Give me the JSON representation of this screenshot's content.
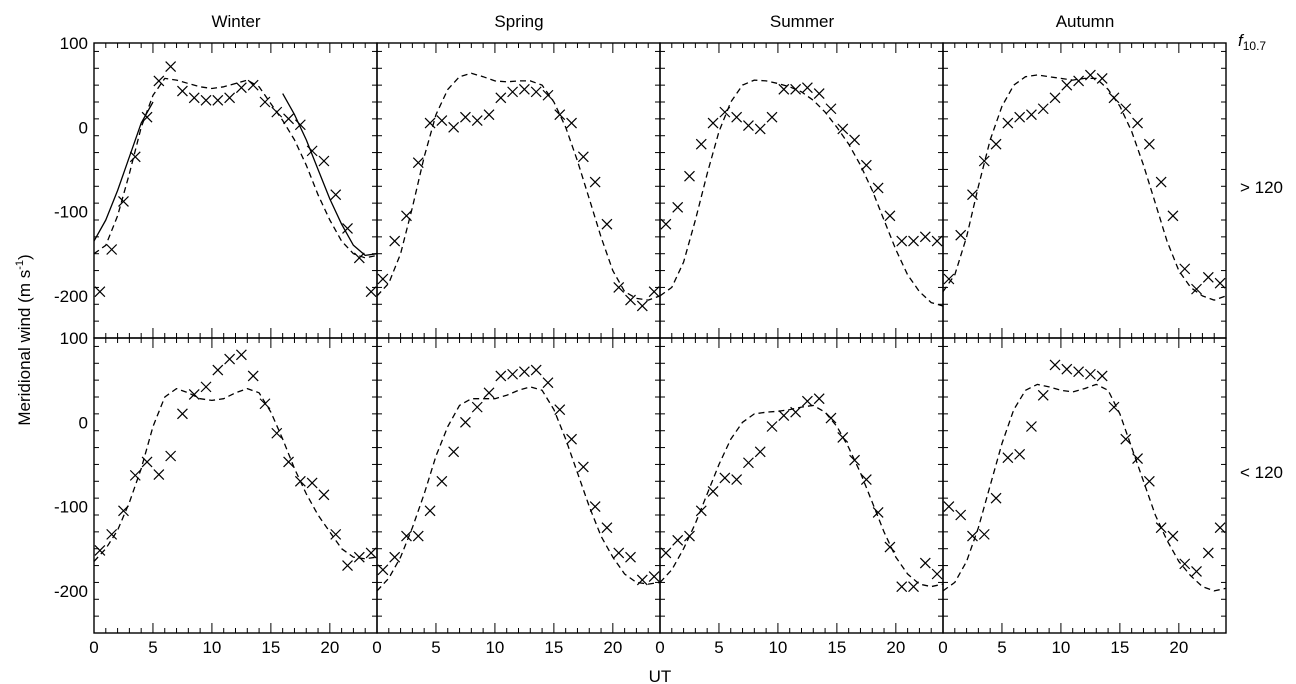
{
  "figure": {
    "ylabel_main": "Meridional wind (m s",
    "ylabel_sup": "-1",
    "ylabel_close": ")",
    "xlabel": "UT",
    "f107_label_main": "f",
    "f107_label_sub": "10.7",
    "row_labels": [
      "> 120",
      "< 120"
    ],
    "season_titles": [
      "Winter",
      "Spring",
      "Summer",
      "Autumn"
    ]
  },
  "chart_data": {
    "type": "scatter",
    "grid": false,
    "xlim": [
      0,
      24
    ],
    "ylim": [
      -250,
      100
    ],
    "x_ticks": [
      "0",
      "5",
      "10",
      "15",
      "20"
    ],
    "y_ticks": [
      "100",
      "0",
      "-100",
      "-200"
    ],
    "panels": [
      {
        "season": "Winter",
        "f107": "> 120",
        "obs_x": [
          0.5,
          1.5,
          2.5,
          3.5,
          4.5,
          5.5,
          6.5,
          7.5,
          8.5,
          9.5,
          10.5,
          11.5,
          12.5,
          13.5,
          14.5,
          15.5,
          16.5,
          17.5,
          18.5,
          19.5,
          20.5,
          21.5,
          22.5,
          23.5
        ],
        "obs_y": [
          -195,
          -145,
          -88,
          -35,
          12,
          55,
          72,
          43,
          35,
          32,
          32,
          35,
          47,
          50,
          30,
          18,
          10,
          3,
          -28,
          -40,
          -80,
          -120,
          -155,
          -195
        ],
        "model_x": [
          0,
          1,
          2,
          3,
          4,
          5,
          6,
          7,
          8,
          9,
          10,
          11,
          12,
          13,
          14,
          15,
          16,
          17,
          18,
          19,
          20,
          21,
          22,
          23,
          24
        ],
        "model_y": [
          -150,
          -140,
          -105,
          -55,
          0,
          38,
          58,
          56,
          52,
          48,
          46,
          48,
          52,
          56,
          48,
          28,
          8,
          -15,
          -45,
          -80,
          -110,
          -135,
          -150,
          -155,
          -152
        ],
        "solid_segments": [
          {
            "x": [
              0,
              1,
              2,
              3,
              4,
              5
            ],
            "y": [
              -135,
              -110,
              -75,
              -35,
              5,
              30
            ]
          },
          {
            "x": [
              16,
              17,
              18,
              19,
              20,
              21,
              22,
              23,
              24
            ],
            "y": [
              40,
              15,
              -15,
              -50,
              -85,
              -115,
              -140,
              -152,
              -150
            ]
          }
        ]
      },
      {
        "season": "Spring",
        "f107": "> 120",
        "obs_x": [
          0.5,
          1.5,
          2.5,
          3.5,
          4.5,
          5.5,
          6.5,
          7.5,
          8.5,
          9.5,
          10.5,
          11.5,
          12.5,
          13.5,
          14.5,
          15.5,
          16.5,
          17.5,
          18.5,
          19.5,
          20.5,
          21.5,
          22.5,
          23.5
        ],
        "obs_y": [
          -180,
          -135,
          -105,
          -42,
          5,
          8,
          0,
          12,
          8,
          15,
          35,
          42,
          45,
          42,
          38,
          15,
          5,
          -35,
          -65,
          -115,
          -190,
          -205,
          -212,
          -195
        ],
        "model_x": [
          0,
          1,
          2,
          3,
          4,
          5,
          6,
          7,
          8,
          9,
          10,
          11,
          12,
          13,
          14,
          15,
          16,
          17,
          18,
          19,
          20,
          21,
          22,
          23,
          24
        ],
        "model_y": [
          -200,
          -185,
          -150,
          -95,
          -35,
          15,
          45,
          60,
          64,
          60,
          55,
          54,
          55,
          55,
          50,
          30,
          0,
          -40,
          -85,
          -130,
          -170,
          -195,
          -203,
          -205,
          -200
        ]
      },
      {
        "season": "Summer",
        "f107": "> 120",
        "obs_x": [
          0.5,
          1.5,
          2.5,
          3.5,
          4.5,
          5.5,
          6.5,
          7.5,
          8.5,
          9.5,
          10.5,
          11.5,
          12.5,
          13.5,
          14.5,
          15.5,
          16.5,
          17.5,
          18.5,
          19.5,
          20.5,
          21.5,
          22.5,
          23.5
        ],
        "obs_y": [
          -115,
          -95,
          -58,
          -20,
          5,
          18,
          12,
          2,
          -2,
          12,
          45,
          45,
          47,
          40,
          22,
          -2,
          -15,
          -45,
          -72,
          -105,
          -135,
          -135,
          -130,
          -135
        ],
        "model_x": [
          0,
          1,
          2,
          3,
          4,
          5,
          6,
          7,
          8,
          9,
          10,
          11,
          12,
          13,
          14,
          15,
          16,
          17,
          18,
          19,
          20,
          21,
          22,
          23,
          24
        ],
        "model_y": [
          -200,
          -190,
          -160,
          -110,
          -55,
          -5,
          30,
          50,
          56,
          55,
          52,
          48,
          42,
          32,
          18,
          0,
          -20,
          -45,
          -75,
          -110,
          -145,
          -175,
          -195,
          -208,
          -212
        ]
      },
      {
        "season": "Autumn",
        "f107": "> 120",
        "obs_x": [
          0.5,
          1.5,
          2.5,
          3.5,
          4.5,
          5.5,
          6.5,
          7.5,
          8.5,
          9.5,
          10.5,
          11.5,
          12.5,
          13.5,
          14.5,
          15.5,
          16.5,
          17.5,
          18.5,
          19.5,
          20.5,
          21.5,
          22.5,
          23.5
        ],
        "obs_y": [
          -180,
          -128,
          -80,
          -40,
          -20,
          5,
          12,
          15,
          22,
          35,
          50,
          55,
          62,
          58,
          35,
          22,
          5,
          -20,
          -65,
          -105,
          -168,
          -192,
          -178,
          -185
        ],
        "model_x": [
          0,
          1,
          2,
          3,
          4,
          5,
          6,
          7,
          8,
          9,
          10,
          11,
          12,
          13,
          14,
          15,
          16,
          17,
          18,
          19,
          20,
          21,
          22,
          23,
          24
        ],
        "model_y": [
          -195,
          -175,
          -130,
          -70,
          -15,
          25,
          50,
          60,
          62,
          60,
          58,
          56,
          58,
          58,
          45,
          25,
          -5,
          -45,
          -90,
          -135,
          -170,
          -190,
          -200,
          -205,
          -200
        ]
      },
      {
        "season": "Winter",
        "f107": "< 120",
        "obs_x": [
          0.5,
          1.5,
          2.5,
          3.5,
          4.5,
          5.5,
          6.5,
          7.5,
          8.5,
          9.5,
          10.5,
          11.5,
          12.5,
          13.5,
          14.5,
          15.5,
          16.5,
          17.5,
          18.5,
          19.5,
          20.5,
          21.5,
          22.5,
          23.5
        ],
        "obs_y": [
          -152,
          -133,
          -105,
          -63,
          -47,
          -62,
          -40,
          10,
          33,
          42,
          62,
          75,
          80,
          55,
          22,
          -13,
          -47,
          -70,
          -72,
          -86,
          -133,
          -170,
          -160,
          -155
        ],
        "model_x": [
          0,
          1,
          2,
          3,
          4,
          5,
          6,
          7,
          8,
          9,
          10,
          11,
          12,
          13,
          14,
          15,
          16,
          17,
          18,
          19,
          20,
          21,
          22,
          23,
          24
        ],
        "model_y": [
          -165,
          -150,
          -128,
          -95,
          -55,
          -5,
          30,
          40,
          35,
          28,
          26,
          28,
          35,
          40,
          35,
          12,
          -20,
          -55,
          -85,
          -110,
          -130,
          -150,
          -160,
          -162,
          -160
        ]
      },
      {
        "season": "Spring",
        "f107": "< 120",
        "obs_x": [
          0.5,
          1.5,
          2.5,
          3.5,
          4.5,
          5.5,
          6.5,
          7.5,
          8.5,
          9.5,
          10.5,
          11.5,
          12.5,
          13.5,
          14.5,
          15.5,
          16.5,
          17.5,
          18.5,
          19.5,
          20.5,
          21.5,
          22.5,
          23.5
        ],
        "obs_y": [
          -175,
          -160,
          -135,
          -135,
          -105,
          -70,
          -35,
          0,
          18,
          35,
          55,
          57,
          60,
          62,
          47,
          15,
          -20,
          -53,
          -100,
          -125,
          -155,
          -160,
          -187,
          -183
        ],
        "model_x": [
          0,
          1,
          2,
          3,
          4,
          5,
          6,
          7,
          8,
          9,
          10,
          11,
          12,
          13,
          14,
          15,
          16,
          17,
          18,
          19,
          20,
          21,
          22,
          23,
          24
        ],
        "model_y": [
          -200,
          -185,
          -160,
          -125,
          -85,
          -40,
          -5,
          20,
          28,
          28,
          28,
          32,
          38,
          42,
          38,
          15,
          -20,
          -60,
          -100,
          -135,
          -160,
          -180,
          -190,
          -192,
          -190
        ]
      },
      {
        "season": "Summer",
        "f107": "< 120",
        "obs_x": [
          0.5,
          1.5,
          2.5,
          3.5,
          4.5,
          5.5,
          6.5,
          7.5,
          8.5,
          9.5,
          10.5,
          11.5,
          12.5,
          13.5,
          14.5,
          15.5,
          16.5,
          17.5,
          18.5,
          19.5,
          20.5,
          21.5,
          22.5,
          23.5
        ],
        "obs_y": [
          -155,
          -140,
          -135,
          -105,
          -82,
          -66,
          -68,
          -48,
          -35,
          -5,
          8,
          12,
          25,
          28,
          5,
          -18,
          -45,
          -68,
          -107,
          -148,
          -195,
          -195,
          -167,
          -180
        ],
        "model_x": [
          0,
          1,
          2,
          3,
          4,
          5,
          6,
          7,
          8,
          9,
          10,
          11,
          12,
          13,
          14,
          15,
          16,
          17,
          18,
          19,
          20,
          21,
          22,
          23,
          24
        ],
        "model_y": [
          -190,
          -175,
          -150,
          -120,
          -85,
          -50,
          -20,
          0,
          10,
          12,
          13,
          15,
          18,
          20,
          12,
          -5,
          -30,
          -60,
          -95,
          -130,
          -160,
          -180,
          -192,
          -195,
          -192
        ]
      },
      {
        "season": "Autumn",
        "f107": "< 120",
        "obs_x": [
          0.5,
          1.5,
          2.5,
          3.5,
          4.5,
          5.5,
          6.5,
          7.5,
          8.5,
          9.5,
          10.5,
          11.5,
          12.5,
          13.5,
          14.5,
          15.5,
          16.5,
          17.5,
          18.5,
          19.5,
          20.5,
          21.5,
          22.5,
          23.5
        ],
        "obs_y": [
          -100,
          -110,
          -135,
          -133,
          -90,
          -42,
          -38,
          -5,
          32,
          68,
          63,
          60,
          57,
          55,
          18,
          -20,
          -43,
          -70,
          -125,
          -135,
          -168,
          -177,
          -155,
          -125
        ],
        "model_x": [
          0,
          1,
          2,
          3,
          4,
          5,
          6,
          7,
          8,
          9,
          10,
          11,
          12,
          13,
          14,
          15,
          16,
          17,
          18,
          19,
          20,
          21,
          22,
          23,
          24
        ],
        "model_y": [
          -200,
          -190,
          -165,
          -125,
          -75,
          -25,
          15,
          38,
          45,
          42,
          38,
          36,
          40,
          45,
          38,
          10,
          -30,
          -70,
          -110,
          -140,
          -165,
          -182,
          -195,
          -200,
          -197
        ]
      }
    ]
  }
}
